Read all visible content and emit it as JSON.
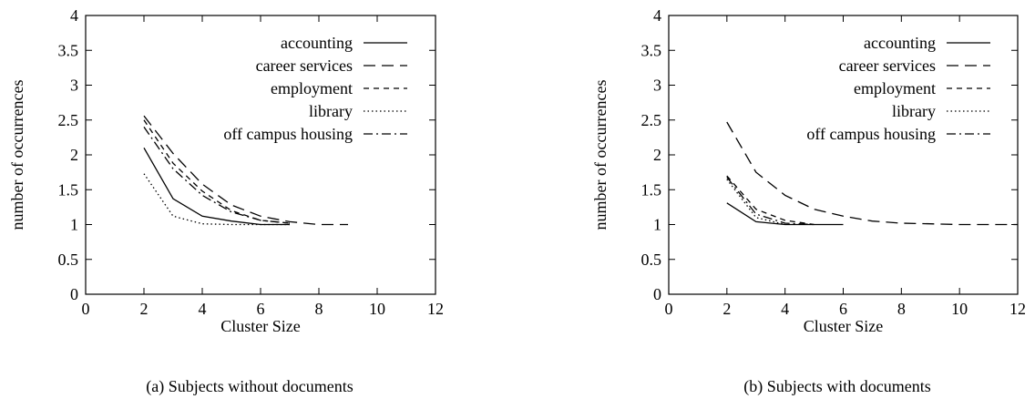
{
  "chart_data": [
    {
      "type": "line",
      "caption": "(a) Subjects without documents",
      "xlabel": "Cluster Size",
      "ylabel": "number of occurrences",
      "xlim": [
        0,
        12
      ],
      "ylim": [
        0,
        4
      ],
      "xticks": [
        "0",
        "2",
        "4",
        "6",
        "8",
        "10",
        "12"
      ],
      "yticks": [
        "0",
        "0.5",
        "1",
        "1.5",
        "2",
        "2.5",
        "3",
        "3.5",
        "4"
      ],
      "legend_position": "top-right",
      "series": [
        {
          "name": "accounting",
          "dash": "solid",
          "x": [
            2,
            3,
            4,
            5,
            6,
            7
          ],
          "y": [
            2.1,
            1.37,
            1.12,
            1.05,
            1.0,
            1.0
          ]
        },
        {
          "name": "career services",
          "dash": "long-dash",
          "x": [
            2,
            3,
            4,
            5,
            6,
            7,
            8,
            9
          ],
          "y": [
            2.56,
            2.02,
            1.58,
            1.28,
            1.12,
            1.04,
            1.0,
            1.0
          ]
        },
        {
          "name": "employment",
          "dash": "short-dash",
          "x": [
            2,
            3,
            4,
            5,
            6,
            7
          ],
          "y": [
            2.5,
            1.88,
            1.48,
            1.2,
            1.06,
            1.02
          ]
        },
        {
          "name": "library",
          "dash": "dotted",
          "x": [
            2,
            3,
            4,
            5,
            6,
            7
          ],
          "y": [
            1.73,
            1.12,
            1.01,
            1.0,
            1.0,
            1.0
          ]
        },
        {
          "name": "off campus housing",
          "dash": "dash-dot",
          "x": [
            2,
            3,
            4,
            5,
            6,
            7
          ],
          "y": [
            2.4,
            1.8,
            1.42,
            1.18,
            1.06,
            1.02
          ]
        }
      ]
    },
    {
      "type": "line",
      "caption": "(b) Subjects with documents",
      "xlabel": "Cluster Size",
      "ylabel": "number of occurrences",
      "xlim": [
        0,
        12
      ],
      "ylim": [
        0,
        4
      ],
      "xticks": [
        "0",
        "2",
        "4",
        "6",
        "8",
        "10",
        "12"
      ],
      "yticks": [
        "0",
        "0.5",
        "1",
        "1.5",
        "2",
        "2.5",
        "3",
        "3.5",
        "4"
      ],
      "legend_position": "top-right",
      "series": [
        {
          "name": "accounting",
          "dash": "solid",
          "x": [
            2,
            3,
            4,
            5,
            6
          ],
          "y": [
            1.31,
            1.04,
            1.0,
            1.0,
            1.0
          ]
        },
        {
          "name": "career services",
          "dash": "long-dash",
          "x": [
            2,
            3,
            4,
            5,
            6,
            7,
            8,
            9,
            10,
            11,
            12
          ],
          "y": [
            2.47,
            1.75,
            1.42,
            1.22,
            1.12,
            1.05,
            1.02,
            1.01,
            1.0,
            1.0,
            1.0
          ]
        },
        {
          "name": "employment",
          "dash": "short-dash",
          "x": [
            2,
            3,
            4,
            5
          ],
          "y": [
            1.7,
            1.22,
            1.06,
            1.0
          ]
        },
        {
          "name": "library",
          "dash": "dotted",
          "x": [
            2,
            3,
            4
          ],
          "y": [
            1.65,
            1.1,
            1.0
          ]
        },
        {
          "name": "off campus housing",
          "dash": "dash-dot",
          "x": [
            2,
            3,
            4,
            5
          ],
          "y": [
            1.68,
            1.15,
            1.02,
            1.0
          ]
        }
      ]
    }
  ]
}
